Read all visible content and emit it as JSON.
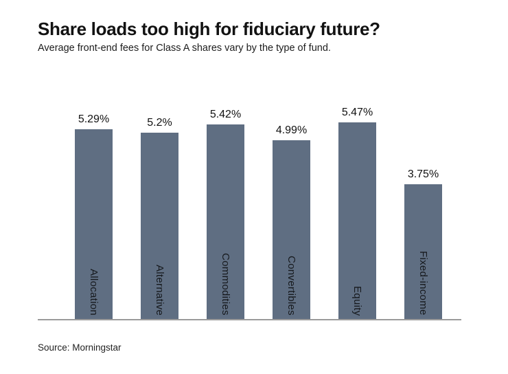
{
  "chart_data": {
    "type": "bar",
    "title": "Share loads too high for fiduciary future?",
    "subtitle": "Average front-end fees for Class A shares vary by the type of fund.",
    "source": "Source: Morningstar",
    "categories": [
      "Allocation",
      "Alternative",
      "Commodities",
      "Convertibles",
      "Equity",
      "Fixed-income"
    ],
    "values": [
      5.29,
      5.2,
      5.42,
      4.99,
      5.47,
      3.75
    ],
    "value_labels": [
      "5.29%",
      "5.2%",
      "5.42%",
      "4.99%",
      "5.47%",
      "3.75%"
    ],
    "xlabel": "",
    "ylabel": "",
    "ylim": [
      0,
      6.4
    ],
    "grid": false,
    "legend": false,
    "bar_color": "#5f6e82",
    "axis_line_color": "#9b9b9b",
    "value_label_color": "#111111",
    "category_label_color": "#16191d"
  }
}
